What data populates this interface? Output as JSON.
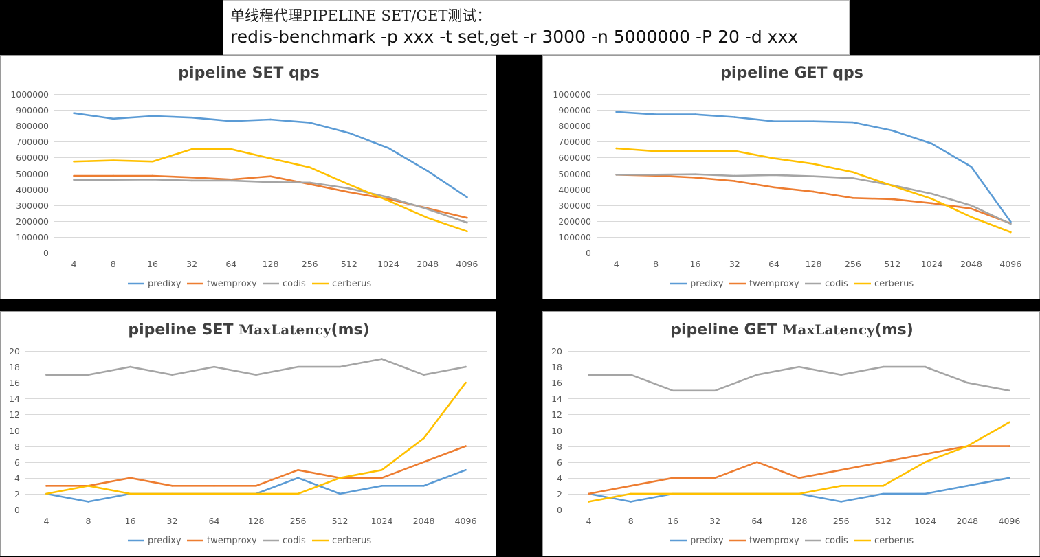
{
  "header": {
    "line1": "单线程代理PIPELINE SET/GET测试：",
    "line2": "redis-benchmark -p xxx -t set,get -r 3000 -n 5000000 -P 20 -d xxx"
  },
  "legend": [
    "predixy",
    "twemproxy",
    "codis",
    "cerberus"
  ],
  "colors": {
    "predixy": "#5b9bd5",
    "twemproxy": "#ed7d31",
    "codis": "#a5a5a5",
    "cerberus": "#ffc000",
    "grid": "#d9d9d9"
  },
  "chart_data": [
    {
      "type": "line",
      "title": "pipeline  SET qps",
      "title_parts": [
        "pipeline  SET qps"
      ],
      "categories": [
        "4",
        "8",
        "16",
        "32",
        "64",
        "128",
        "256",
        "512",
        "1024",
        "2048",
        "4096"
      ],
      "ylim": [
        0,
        1000000
      ],
      "ystep": 100000,
      "grid": true,
      "legend_position": "bottom",
      "series": [
        {
          "name": "predixy",
          "values": [
            880000,
            845000,
            862000,
            852000,
            830000,
            840000,
            820000,
            755000,
            660000,
            515000,
            350000
          ]
        },
        {
          "name": "twemproxy",
          "values": [
            485000,
            485000,
            485000,
            475000,
            462000,
            482000,
            432000,
            382000,
            338000,
            280000,
            220000
          ]
        },
        {
          "name": "codis",
          "values": [
            460000,
            460000,
            462000,
            455000,
            455000,
            445000,
            442000,
            405000,
            350000,
            275000,
            190000
          ]
        },
        {
          "name": "cerberus",
          "values": [
            575000,
            582000,
            575000,
            653000,
            653000,
            595000,
            538000,
            430000,
            328000,
            220000,
            135000
          ]
        }
      ]
    },
    {
      "type": "line",
      "title": "pipeline  GET qps",
      "title_parts": [
        "pipeline  GET qps"
      ],
      "categories": [
        "4",
        "8",
        "16",
        "32",
        "64",
        "128",
        "256",
        "512",
        "1024",
        "2048",
        "4096"
      ],
      "ylim": [
        0,
        1000000
      ],
      "ystep": 100000,
      "grid": true,
      "legend_position": "bottom",
      "series": [
        {
          "name": "predixy",
          "values": [
            888000,
            872000,
            872000,
            855000,
            828000,
            828000,
            822000,
            770000,
            688000,
            542000,
            195000
          ]
        },
        {
          "name": "twemproxy",
          "values": [
            492000,
            486000,
            474000,
            452000,
            412000,
            385000,
            345000,
            338000,
            312000,
            278000,
            185000
          ]
        },
        {
          "name": "codis",
          "values": [
            492000,
            492000,
            495000,
            485000,
            490000,
            482000,
            470000,
            425000,
            372000,
            298000,
            182000
          ]
        },
        {
          "name": "cerberus",
          "values": [
            658000,
            640000,
            642000,
            642000,
            595000,
            560000,
            508000,
            422000,
            340000,
            225000,
            130000
          ]
        }
      ]
    },
    {
      "type": "line",
      "title": "pipeline  SET MaxLatency(ms)",
      "title_parts": [
        "pipeline  SET ",
        "MaxLatency",
        "(ms)"
      ],
      "categories": [
        "4",
        "8",
        "16",
        "32",
        "64",
        "128",
        "256",
        "512",
        "1024",
        "2048",
        "4096"
      ],
      "ylim": [
        0,
        20
      ],
      "ystep": 2,
      "grid": true,
      "legend_position": "bottom",
      "series": [
        {
          "name": "predixy",
          "values": [
            2,
            1,
            2,
            2,
            2,
            2,
            4,
            2,
            3,
            3,
            5
          ]
        },
        {
          "name": "twemproxy",
          "values": [
            3,
            3,
            4,
            3,
            3,
            3,
            5,
            4,
            4,
            6,
            8
          ]
        },
        {
          "name": "codis",
          "values": [
            17,
            17,
            18,
            17,
            18,
            17,
            18,
            18,
            19,
            17,
            18
          ]
        },
        {
          "name": "cerberus",
          "values": [
            2,
            3,
            2,
            2,
            2,
            2,
            2,
            4,
            5,
            9,
            16
          ]
        }
      ]
    },
    {
      "type": "line",
      "title": "pipeline  GET MaxLatency(ms)",
      "title_parts": [
        "pipeline  GET ",
        "MaxLatency",
        "(ms)"
      ],
      "categories": [
        "4",
        "8",
        "16",
        "32",
        "64",
        "128",
        "256",
        "512",
        "1024",
        "2048",
        "4096"
      ],
      "ylim": [
        0,
        20
      ],
      "ystep": 2,
      "grid": true,
      "legend_position": "bottom",
      "series": [
        {
          "name": "predixy",
          "values": [
            2,
            1,
            2,
            2,
            2,
            2,
            1,
            2,
            2,
            3,
            4
          ]
        },
        {
          "name": "twemproxy",
          "values": [
            2,
            3,
            4,
            4,
            6,
            4,
            5,
            6,
            7,
            8,
            8
          ]
        },
        {
          "name": "codis",
          "values": [
            17,
            17,
            15,
            15,
            17,
            18,
            17,
            18,
            18,
            16,
            15
          ]
        },
        {
          "name": "cerberus",
          "values": [
            1,
            2,
            2,
            2,
            2,
            2,
            3,
            3,
            6,
            8,
            11
          ]
        }
      ]
    }
  ]
}
